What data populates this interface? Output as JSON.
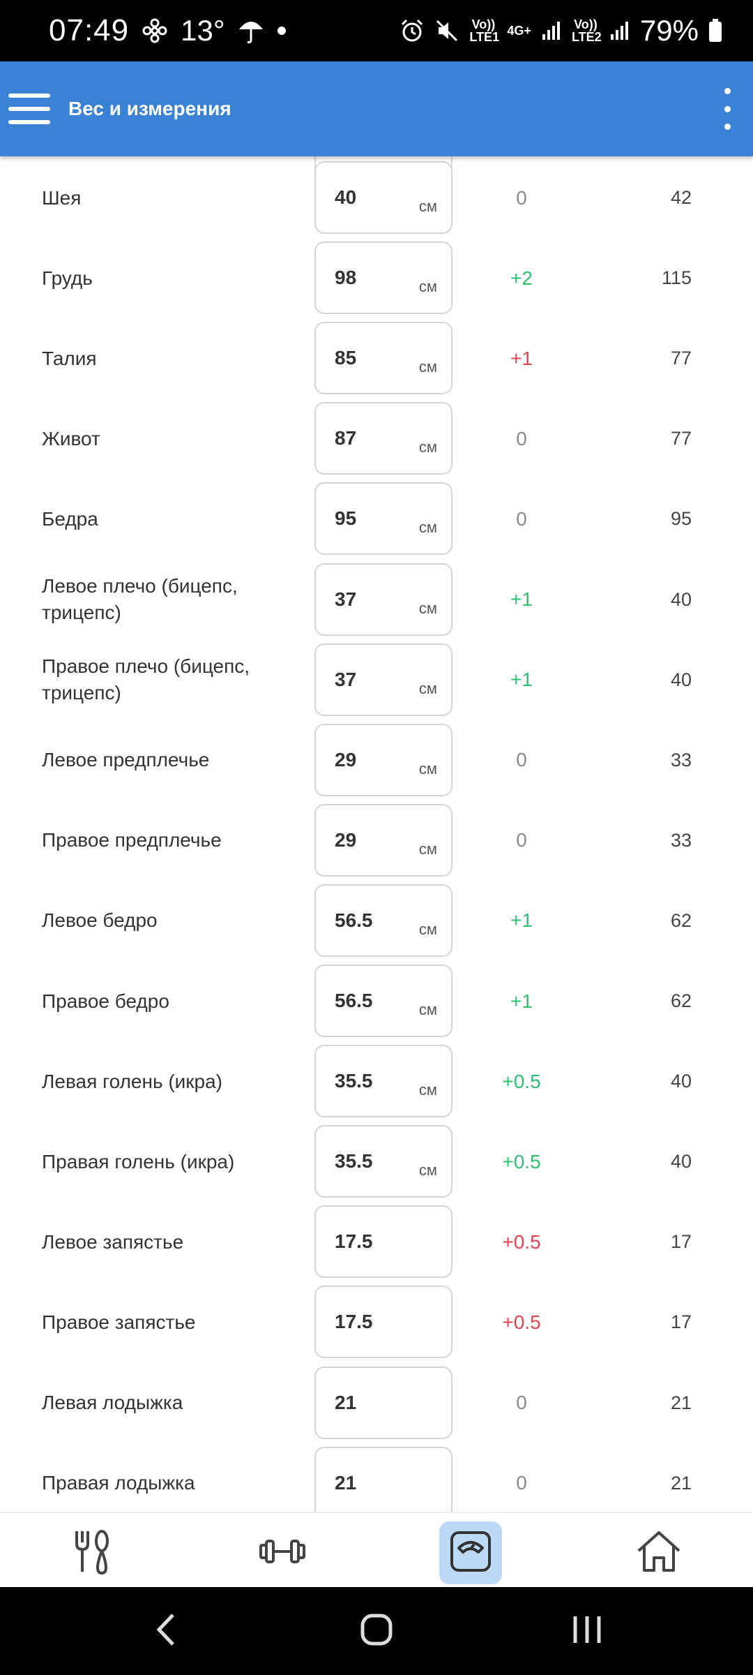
{
  "status_bar": {
    "time": "07:49",
    "temperature": "13°",
    "lte1": "Vo)) LTE1",
    "network_type": "4G+",
    "lte2": "Vo)) LTE2",
    "battery": "79%"
  },
  "app_bar": {
    "title": "Вес и измерения"
  },
  "rows": [
    {
      "label": "Шея",
      "value": "40",
      "unit": "см",
      "diff": "0",
      "diff_color": "#8a8a8a",
      "target": "42"
    },
    {
      "label": "Грудь",
      "value": "98",
      "unit": "см",
      "diff": "+2",
      "diff_color": "#2fbf71",
      "target": "115"
    },
    {
      "label": "Талия",
      "value": "85",
      "unit": "см",
      "diff": "+1",
      "diff_color": "#e0454f",
      "target": "77"
    },
    {
      "label": "Живот",
      "value": "87",
      "unit": "см",
      "diff": "0",
      "diff_color": "#8a8a8a",
      "target": "77"
    },
    {
      "label": "Бедра",
      "value": "95",
      "unit": "см",
      "diff": "0",
      "diff_color": "#8a8a8a",
      "target": "95"
    },
    {
      "label": "Левое плечо (бицепс, трицепс)",
      "value": "37",
      "unit": "см",
      "diff": "+1",
      "diff_color": "#2fbf71",
      "target": "40"
    },
    {
      "label": "Правое плечо (бицепс, трицепс)",
      "value": "37",
      "unit": "см",
      "diff": "+1",
      "diff_color": "#2fbf71",
      "target": "40"
    },
    {
      "label": "Левое предплечье",
      "value": "29",
      "unit": "см",
      "diff": "0",
      "diff_color": "#8a8a8a",
      "target": "33"
    },
    {
      "label": "Правое предплечье",
      "value": "29",
      "unit": "см",
      "diff": "0",
      "diff_color": "#8a8a8a",
      "target": "33"
    },
    {
      "label": "Левое бедро",
      "value": "56.5",
      "unit": "см",
      "diff": "+1",
      "diff_color": "#2fbf71",
      "target": "62"
    },
    {
      "label": "Правое бедро",
      "value": "56.5",
      "unit": "см",
      "diff": "+1",
      "diff_color": "#2fbf71",
      "target": "62"
    },
    {
      "label": "Левая голень (икра)",
      "value": "35.5",
      "unit": "см",
      "diff": "+0.5",
      "diff_color": "#2fbf71",
      "target": "40"
    },
    {
      "label": "Правая голень (икра)",
      "value": "35.5",
      "unit": "см",
      "diff": "+0.5",
      "diff_color": "#2fbf71",
      "target": "40"
    },
    {
      "label": "Левое запястье",
      "value": "17.5",
      "unit": "",
      "diff": "+0.5",
      "diff_color": "#e0454f",
      "target": "17"
    },
    {
      "label": "Правое запястье",
      "value": "17.5",
      "unit": "",
      "diff": "+0.5",
      "diff_color": "#e0454f",
      "target": "17"
    },
    {
      "label": "Левая лодыжка",
      "value": "21",
      "unit": "",
      "diff": "0",
      "diff_color": "#8a8a8a",
      "target": "21"
    },
    {
      "label": "Правая лодыжка",
      "value": "21",
      "unit": "",
      "diff": "0",
      "diff_color": "#8a8a8a",
      "target": "21"
    }
  ],
  "bottom_nav": {
    "items": [
      {
        "icon": "fork-spoon-icon",
        "active": false
      },
      {
        "icon": "dumbbell-icon",
        "active": false
      },
      {
        "icon": "scale-icon",
        "active": true
      },
      {
        "icon": "home-icon",
        "active": false
      }
    ],
    "accent_color": "#3a82d6"
  }
}
